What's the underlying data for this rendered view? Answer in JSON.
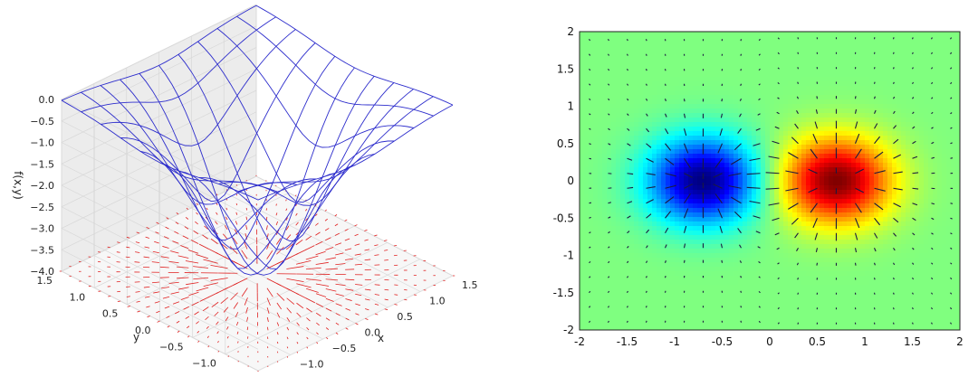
{
  "chart_data": [
    {
      "type": "surface",
      "subtype": "3d-wireframe-surface-with-vector-field-floor",
      "zlabel": "f(x,y)",
      "xlabel": "x",
      "ylabel": "y",
      "xlim": [
        -1.5,
        1.5
      ],
      "ylim": [
        -1.5,
        1.5
      ],
      "zlim": [
        -4.0,
        0.0
      ],
      "x_ticks": [
        "−1.0",
        "−0.5",
        "0.0",
        "0.5",
        "1.0",
        "1.5"
      ],
      "y_ticks": [
        "−1.0",
        "−0.5",
        "0.0",
        "0.5",
        "1.0",
        "1.5"
      ],
      "z_ticks": [
        "−4.0",
        "−3.5",
        "−3.0",
        "−2.5",
        "−2.0",
        "−1.5",
        "−1.0",
        "−0.5",
        "0.0"
      ],
      "x_tick_values": [
        -1.0,
        -0.5,
        0.0,
        0.5,
        1.0,
        1.5
      ],
      "y_tick_values": [
        -1.0,
        -0.5,
        0.0,
        0.5,
        1.0,
        1.5
      ],
      "z_tick_values": [
        -4.0,
        -3.5,
        -3.0,
        -2.5,
        -2.0,
        -1.5,
        -1.0,
        -0.5,
        0.0
      ],
      "surface": {
        "grid_x_range": [
          -1.5,
          1.5
        ],
        "grid_y_range": [
          -1.5,
          1.5
        ],
        "grid_lines": 11,
        "min_value": -4.0,
        "min_location": [
          0.0,
          0.0
        ],
        "edge_value": 0.0
      },
      "vector_field": {
        "grid_points_per_side": 21,
        "direction": "radial outward from origin"
      },
      "grid": true,
      "colors": {
        "surface": "#2d2dcc",
        "vectors": "#e02020",
        "pane": "#f2f2f2",
        "gridline": "#d8d8d8"
      }
    },
    {
      "type": "heatmap",
      "subtype": "heatmap-with-quiver",
      "xlim": [
        -2,
        2
      ],
      "ylim": [
        -2,
        2
      ],
      "x_ticks": [
        "-2",
        "-1.5",
        "-1",
        "-0.5",
        "0",
        "0.5",
        "1",
        "1.5",
        "2"
      ],
      "y_ticks": [
        "2",
        "1.5",
        "1",
        "0.5",
        "0",
        "-0.5",
        "-1",
        "-1.5",
        "-2"
      ],
      "x_tick_values": [
        -2,
        -1.5,
        -1,
        -0.5,
        0,
        0.5,
        1,
        1.5,
        2
      ],
      "y_tick_values": [
        2,
        1.5,
        1,
        0.5,
        0,
        -0.5,
        -1,
        -1.5,
        -2
      ],
      "field": {
        "description": "dipole: minimum centered near (-0.7, 0), maximum near (0.7, 0)",
        "min_center": [
          -0.7,
          0.0
        ],
        "max_center": [
          0.7,
          0.0
        ]
      },
      "colormap": "jet",
      "colors": {
        "arrows": "#1a1a40",
        "frame": "#222222"
      }
    }
  ]
}
